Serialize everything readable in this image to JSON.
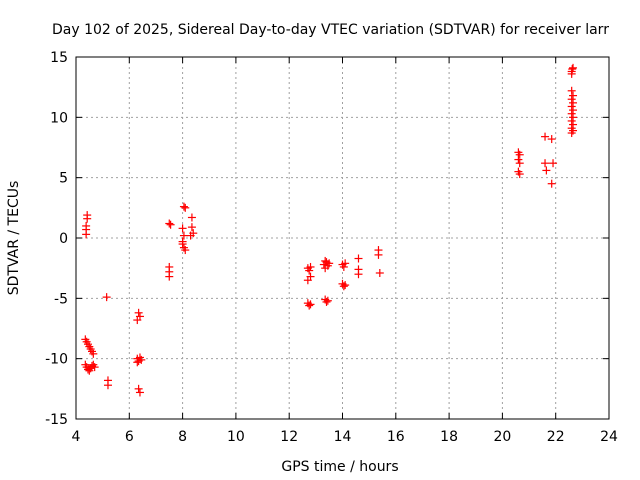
{
  "chart_data": {
    "type": "scatter",
    "title": "Day 102 of 2025, Sidereal Day-to-day VTEC variation (SDTVAR) for receiver larr",
    "xlabel": "GPS time / hours",
    "ylabel": "SDTVAR / TECUs",
    "xlim": [
      4,
      24
    ],
    "ylim": [
      -15,
      15
    ],
    "xticks": [
      "4",
      "6",
      "8",
      "10",
      "12",
      "14",
      "16",
      "18",
      "20",
      "22",
      "24"
    ],
    "yticks": [
      "15",
      "10",
      "5",
      "0",
      "-5",
      "-10",
      "-15"
    ],
    "grid": true,
    "marker": "+",
    "series": [
      {
        "name": "SDTVAR",
        "color": "#ff0000",
        "points": [
          [
            4.38,
            0.3
          ],
          [
            4.38,
            0.7
          ],
          [
            4.38,
            1.0
          ],
          [
            4.42,
            1.6
          ],
          [
            4.42,
            1.9
          ],
          [
            4.35,
            -8.4
          ],
          [
            4.4,
            -8.6
          ],
          [
            4.45,
            -8.8
          ],
          [
            4.5,
            -9.0
          ],
          [
            4.55,
            -9.2
          ],
          [
            4.6,
            -9.4
          ],
          [
            4.65,
            -9.6
          ],
          [
            4.35,
            -10.5
          ],
          [
            4.4,
            -10.7
          ],
          [
            4.45,
            -10.9
          ],
          [
            4.5,
            -11.0
          ],
          [
            4.55,
            -10.8
          ],
          [
            4.6,
            -10.6
          ],
          [
            4.65,
            -10.5
          ],
          [
            4.7,
            -10.7
          ],
          [
            5.15,
            -4.9
          ],
          [
            5.2,
            -11.8
          ],
          [
            5.2,
            -12.2
          ],
          [
            6.35,
            -6.2
          ],
          [
            6.4,
            -6.5
          ],
          [
            6.3,
            -6.8
          ],
          [
            6.3,
            -10.0
          ],
          [
            6.35,
            -10.2
          ],
          [
            6.4,
            -9.9
          ],
          [
            6.45,
            -10.1
          ],
          [
            6.3,
            -10.3
          ],
          [
            6.35,
            -12.5
          ],
          [
            6.4,
            -12.8
          ],
          [
            7.5,
            -2.4
          ],
          [
            7.5,
            -2.8
          ],
          [
            7.5,
            -3.2
          ],
          [
            7.5,
            1.2
          ],
          [
            7.55,
            1.1
          ],
          [
            8.05,
            2.6
          ],
          [
            8.1,
            2.5
          ],
          [
            8.0,
            0.8
          ],
          [
            8.05,
            0.2
          ],
          [
            8.0,
            -0.5
          ],
          [
            8.05,
            -0.8
          ],
          [
            8.1,
            -1.0
          ],
          [
            8.0,
            -0.3
          ],
          [
            8.35,
            1.7
          ],
          [
            8.35,
            0.9
          ],
          [
            8.4,
            0.4
          ],
          [
            8.3,
            0.2
          ],
          [
            12.7,
            -2.5
          ],
          [
            12.75,
            -2.7
          ],
          [
            12.8,
            -3.2
          ],
          [
            12.7,
            -3.5
          ],
          [
            12.8,
            -2.4
          ],
          [
            12.7,
            -5.4
          ],
          [
            12.75,
            -5.6
          ],
          [
            12.8,
            -5.5
          ],
          [
            13.3,
            -2.2
          ],
          [
            13.35,
            -2.5
          ],
          [
            13.4,
            -2.0
          ],
          [
            13.45,
            -2.3
          ],
          [
            13.5,
            -2.1
          ],
          [
            13.35,
            -1.9
          ],
          [
            13.35,
            -5.1
          ],
          [
            13.4,
            -5.3
          ],
          [
            13.45,
            -5.2
          ],
          [
            14.0,
            -2.2
          ],
          [
            14.05,
            -2.4
          ],
          [
            14.1,
            -2.1
          ],
          [
            14.0,
            -3.8
          ],
          [
            14.05,
            -4.0
          ],
          [
            14.1,
            -3.9
          ],
          [
            14.6,
            -1.7
          ],
          [
            14.6,
            -2.6
          ],
          [
            14.6,
            -3.0
          ],
          [
            15.35,
            -1.0
          ],
          [
            15.35,
            -1.4
          ],
          [
            15.4,
            -2.9
          ],
          [
            20.6,
            7.1
          ],
          [
            20.65,
            6.9
          ],
          [
            20.6,
            6.5
          ],
          [
            20.65,
            6.2
          ],
          [
            20.6,
            5.5
          ],
          [
            20.65,
            5.3
          ],
          [
            21.6,
            8.4
          ],
          [
            21.6,
            6.2
          ],
          [
            21.65,
            5.6
          ],
          [
            21.85,
            8.2
          ],
          [
            21.9,
            6.2
          ],
          [
            21.85,
            4.5
          ],
          [
            22.6,
            13.8
          ],
          [
            22.65,
            14.1
          ],
          [
            22.62,
            14.0
          ],
          [
            22.6,
            13.6
          ],
          [
            22.6,
            12.2
          ],
          [
            22.65,
            11.8
          ],
          [
            22.6,
            11.5
          ],
          [
            22.65,
            11.2
          ],
          [
            22.6,
            10.9
          ],
          [
            22.65,
            10.6
          ],
          [
            22.6,
            10.3
          ],
          [
            22.65,
            10.0
          ],
          [
            22.6,
            9.7
          ],
          [
            22.65,
            9.4
          ],
          [
            22.6,
            9.1
          ],
          [
            22.65,
            8.9
          ],
          [
            22.6,
            8.7
          ]
        ]
      }
    ]
  }
}
